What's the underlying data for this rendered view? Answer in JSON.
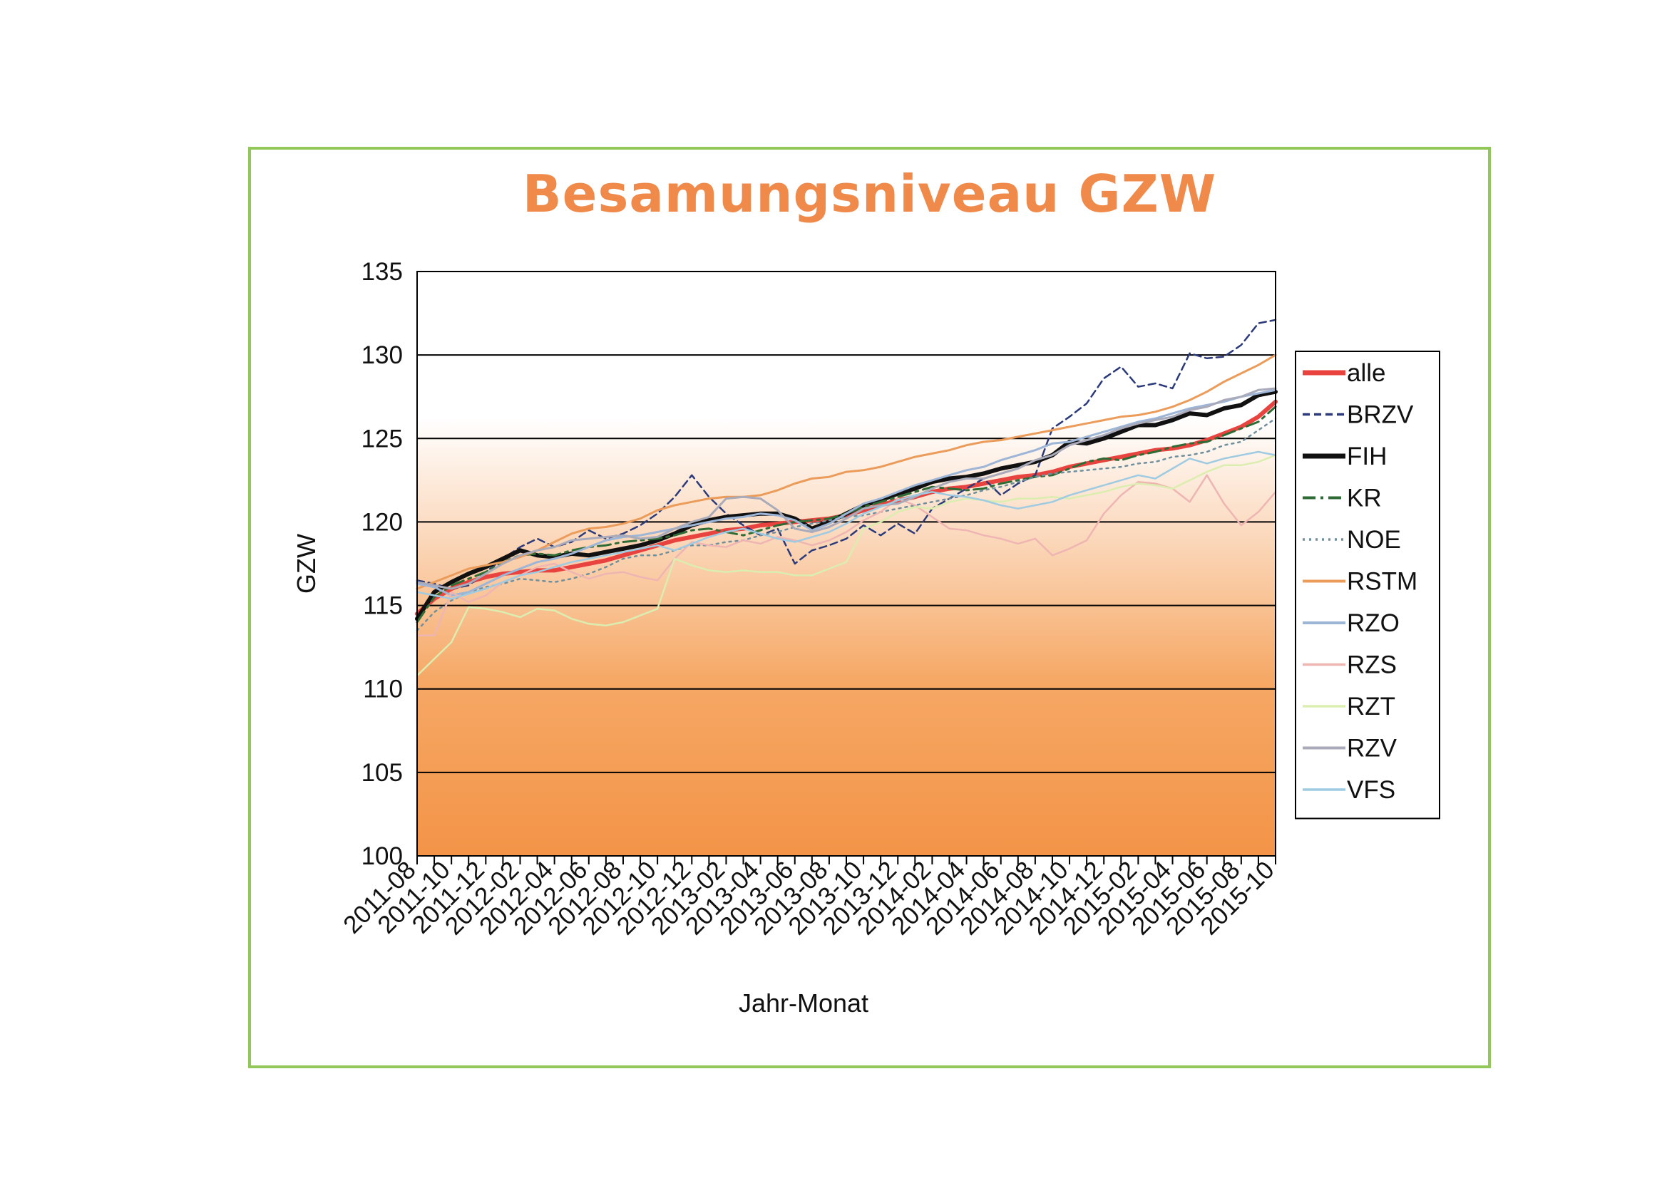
{
  "chart_data": {
    "type": "line",
    "title": "Besamungsniveau GZW",
    "xlabel": "Jahr-Monat",
    "ylabel": "GZW",
    "ylim": [
      100,
      135
    ],
    "yticks": [
      100,
      105,
      110,
      115,
      120,
      125,
      130,
      135
    ],
    "grid": true,
    "legend_position": "right",
    "x": [
      "2011-08",
      "2011-09",
      "2011-10",
      "2011-11",
      "2011-12",
      "2012-01",
      "2012-02",
      "2012-03",
      "2012-04",
      "2012-05",
      "2012-06",
      "2012-07",
      "2012-08",
      "2012-09",
      "2012-10",
      "2012-11",
      "2012-12",
      "2013-01",
      "2013-02",
      "2013-03",
      "2013-04",
      "2013-05",
      "2013-06",
      "2013-07",
      "2013-08",
      "2013-09",
      "2013-10",
      "2013-11",
      "2013-12",
      "2014-01",
      "2014-02",
      "2014-03",
      "2014-04",
      "2014-05",
      "2014-06",
      "2014-07",
      "2014-08",
      "2014-09",
      "2014-10",
      "2014-11",
      "2014-12",
      "2015-01",
      "2015-02",
      "2015-03",
      "2015-04",
      "2015-05",
      "2015-06",
      "2015-07",
      "2015-08",
      "2015-09",
      "2015-10"
    ],
    "xtick_labels": [
      "2011-08",
      "2011-10",
      "2011-12",
      "2012-02",
      "2012-04",
      "2012-06",
      "2012-08",
      "2012-10",
      "2012-12",
      "2013-02",
      "2013-04",
      "2013-06",
      "2013-08",
      "2013-10",
      "2013-12",
      "2014-02",
      "2014-04",
      "2014-06",
      "2014-08",
      "2014-10",
      "2014-12",
      "2015-02",
      "2015-04",
      "2015-06",
      "2015-08",
      "2015-10"
    ],
    "series": [
      {
        "name": "alle",
        "color": "#e8433e",
        "width": 6,
        "dash": "",
        "values": [
          114.5,
          115.4,
          116.0,
          116.4,
          116.7,
          116.9,
          117.0,
          117.1,
          117.1,
          117.3,
          117.5,
          117.7,
          118.0,
          118.3,
          118.6,
          118.9,
          119.1,
          119.3,
          119.5,
          119.6,
          119.8,
          119.9,
          120.0,
          120.1,
          120.2,
          120.4,
          120.7,
          121.0,
          121.3,
          121.5,
          121.8,
          122.0,
          122.1,
          122.3,
          122.5,
          122.7,
          122.8,
          123.0,
          123.3,
          123.5,
          123.7,
          123.9,
          124.1,
          124.3,
          124.4,
          124.6,
          124.9,
          125.3,
          125.7,
          126.3,
          127.2
        ]
      },
      {
        "name": "BRZV",
        "color": "#2b3a7a",
        "width": 2.5,
        "dash": "10,6",
        "values": [
          116.5,
          116.3,
          116.0,
          116.2,
          117.0,
          117.8,
          118.5,
          119.0,
          118.5,
          118.8,
          119.5,
          119.0,
          119.3,
          119.8,
          120.5,
          121.5,
          122.8,
          121.5,
          120.5,
          119.8,
          119.2,
          119.6,
          117.5,
          118.3,
          118.6,
          119.0,
          119.8,
          119.2,
          119.9,
          119.3,
          120.8,
          121.4,
          122.0,
          122.6,
          121.6,
          122.3,
          122.8,
          125.6,
          126.3,
          127.1,
          128.6,
          129.3,
          128.1,
          128.3,
          128.0,
          130.1,
          129.8,
          129.9,
          130.6,
          131.9,
          132.1
        ]
      },
      {
        "name": "FIH",
        "color": "#111111",
        "width": 6,
        "dash": "",
        "values": [
          114.2,
          115.8,
          116.4,
          116.9,
          117.3,
          117.8,
          118.3,
          118.0,
          117.9,
          118.1,
          118.0,
          118.2,
          118.4,
          118.6,
          118.9,
          119.3,
          119.8,
          120.1,
          120.3,
          120.4,
          120.5,
          120.5,
          120.2,
          119.6,
          120.0,
          120.5,
          121.0,
          121.3,
          121.7,
          122.0,
          122.4,
          122.6,
          122.7,
          122.9,
          123.2,
          123.4,
          123.6,
          124.0,
          124.8,
          124.7,
          125.0,
          125.4,
          125.8,
          125.8,
          126.1,
          126.5,
          126.4,
          126.8,
          127.0,
          127.6,
          127.8
        ]
      },
      {
        "name": "KR",
        "color": "#2e6b35",
        "width": 3,
        "dash": "18,7,4,7",
        "values": [
          114.0,
          115.5,
          116.2,
          116.6,
          117.0,
          117.6,
          118.0,
          118.1,
          118.0,
          118.3,
          118.5,
          118.6,
          118.8,
          118.9,
          119.0,
          119.2,
          119.5,
          119.6,
          119.4,
          119.2,
          119.5,
          119.8,
          120.0,
          120.1,
          120.2,
          120.5,
          120.9,
          121.2,
          121.5,
          121.8,
          122.1,
          122.0,
          121.9,
          122.0,
          122.3,
          122.5,
          122.7,
          122.8,
          123.2,
          123.6,
          123.8,
          123.7,
          124.0,
          124.2,
          124.5,
          124.7,
          124.8,
          125.2,
          125.6,
          126.0,
          126.9
        ]
      },
      {
        "name": "NOE",
        "color": "#6f8f9d",
        "width": 2.5,
        "dash": "3,6",
        "values": [
          113.5,
          114.6,
          115.3,
          115.8,
          116.1,
          116.3,
          116.6,
          116.5,
          116.4,
          116.6,
          116.9,
          117.3,
          117.8,
          118.0,
          118.0,
          118.3,
          118.6,
          118.6,
          118.8,
          118.9,
          119.2,
          119.4,
          119.7,
          119.9,
          120.1,
          120.3,
          120.4,
          120.6,
          120.8,
          121.0,
          121.2,
          121.4,
          121.6,
          121.9,
          122.1,
          122.4,
          122.7,
          122.9,
          123.0,
          123.1,
          123.2,
          123.3,
          123.5,
          123.6,
          123.9,
          124.0,
          124.2,
          124.6,
          124.8,
          125.5,
          126.2
        ]
      },
      {
        "name": "RSTM",
        "color": "#ec9c5a",
        "width": 3,
        "dash": "",
        "values": [
          116.0,
          116.4,
          116.8,
          117.2,
          117.4,
          117.6,
          117.9,
          118.3,
          118.8,
          119.3,
          119.6,
          119.7,
          119.9,
          120.2,
          120.7,
          121.0,
          121.2,
          121.4,
          121.5,
          121.5,
          121.6,
          121.9,
          122.3,
          122.6,
          122.7,
          123.0,
          123.1,
          123.3,
          123.6,
          123.9,
          124.1,
          124.3,
          124.6,
          124.8,
          124.9,
          125.1,
          125.3,
          125.5,
          125.7,
          125.9,
          126.1,
          126.3,
          126.4,
          126.6,
          126.9,
          127.3,
          127.8,
          128.4,
          128.9,
          129.4,
          130.0
        ]
      },
      {
        "name": "RZO",
        "color": "#9db5d6",
        "width": 3,
        "dash": "",
        "values": [
          116.3,
          116.1,
          115.6,
          115.8,
          116.3,
          116.8,
          117.2,
          117.6,
          117.8,
          118.1,
          118.5,
          118.9,
          119.1,
          119.2,
          119.4,
          119.6,
          119.8,
          120.0,
          120.2,
          120.3,
          120.5,
          120.4,
          120.1,
          119.5,
          119.9,
          120.5,
          121.1,
          121.4,
          121.8,
          122.2,
          122.5,
          122.8,
          123.1,
          123.3,
          123.7,
          124.0,
          124.3,
          124.7,
          124.8,
          125.1,
          125.4,
          125.7,
          126.0,
          126.2,
          126.5,
          126.8,
          127.0,
          127.2,
          127.5,
          127.7,
          127.9
        ]
      },
      {
        "name": "RZS",
        "color": "#efb5b2",
        "width": 2.5,
        "dash": "",
        "values": [
          113.2,
          113.2,
          115.8,
          115.2,
          115.6,
          116.4,
          116.8,
          117.3,
          117.5,
          117.0,
          116.6,
          116.9,
          117.0,
          116.7,
          116.5,
          117.8,
          118.8,
          118.6,
          118.5,
          118.9,
          118.7,
          119.1,
          118.9,
          118.6,
          118.9,
          119.4,
          120.1,
          120.6,
          121.4,
          121.0,
          120.3,
          119.6,
          119.5,
          119.2,
          119.0,
          118.7,
          119.0,
          118.0,
          118.4,
          118.9,
          120.5,
          121.6,
          122.4,
          122.3,
          122.0,
          121.2,
          122.8,
          121.1,
          119.8,
          120.6,
          121.8
        ]
      },
      {
        "name": "RZT",
        "color": "#dcedb0",
        "width": 2.5,
        "dash": "",
        "values": [
          110.8,
          111.8,
          112.8,
          114.9,
          114.8,
          114.6,
          114.3,
          114.8,
          114.7,
          114.2,
          113.9,
          113.8,
          114.0,
          114.4,
          114.8,
          117.8,
          117.4,
          117.1,
          117.0,
          117.1,
          117.0,
          117.0,
          116.8,
          116.8,
          117.2,
          117.6,
          119.6,
          120.0,
          120.6,
          120.9,
          120.8,
          121.2,
          121.4,
          121.3,
          121.2,
          121.4,
          121.4,
          121.5,
          121.4,
          121.6,
          121.8,
          122.1,
          122.3,
          122.2,
          122.0,
          122.5,
          123.0,
          123.4,
          123.4,
          123.6,
          124.0
        ]
      },
      {
        "name": "RZV",
        "color": "#a9abba",
        "width": 3,
        "dash": "",
        "values": [
          116.4,
          116.2,
          116.0,
          116.3,
          116.9,
          117.5,
          118.0,
          118.3,
          118.5,
          118.9,
          119.0,
          119.1,
          119.2,
          119.0,
          119.1,
          119.6,
          120.0,
          120.3,
          121.4,
          121.5,
          121.4,
          120.7,
          119.6,
          119.4,
          119.7,
          120.2,
          120.8,
          121.0,
          121.1,
          121.5,
          122.0,
          122.4,
          122.6,
          122.6,
          122.9,
          123.2,
          123.7,
          124.0,
          124.6,
          124.9,
          125.2,
          125.6,
          125.9,
          126.1,
          126.3,
          126.7,
          126.9,
          127.3,
          127.5,
          127.9,
          128.0
        ]
      },
      {
        "name": "VFS",
        "color": "#9fcbe2",
        "width": 2.5,
        "dash": "",
        "values": [
          115.8,
          115.6,
          115.4,
          115.7,
          116.0,
          116.4,
          116.8,
          117.0,
          117.3,
          117.6,
          117.8,
          118.0,
          118.2,
          118.4,
          118.6,
          118.3,
          118.7,
          119.1,
          119.4,
          119.6,
          119.3,
          119.0,
          118.8,
          119.1,
          119.4,
          119.9,
          120.5,
          120.9,
          121.3,
          121.6,
          121.8,
          121.6,
          121.5,
          121.3,
          121.0,
          120.8,
          121.0,
          121.2,
          121.6,
          121.9,
          122.2,
          122.5,
          122.8,
          122.6,
          123.2,
          123.8,
          123.5,
          123.8,
          124.0,
          124.2,
          124.0
        ]
      }
    ]
  }
}
